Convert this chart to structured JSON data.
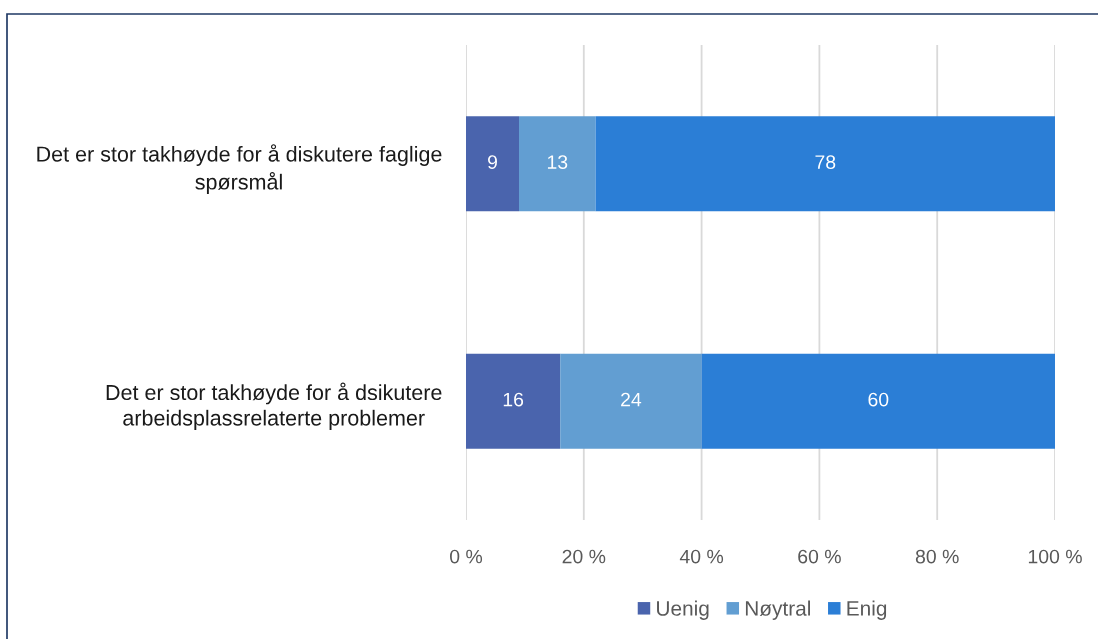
{
  "chart_data": {
    "type": "bar",
    "orientation": "horizontal",
    "stacked": true,
    "categories": [
      "Det er stor takhøyde for å diskutere faglige\nspørsmål",
      "Det er stor takhøyde for å dsikutere\narbeidsplassrelaterte problemer"
    ],
    "series": [
      {
        "name": "Uenig",
        "color": "#4a64ad",
        "values": [
          9,
          16
        ]
      },
      {
        "name": "Nøytral",
        "color": "#629ed2",
        "values": [
          13,
          24
        ]
      },
      {
        "name": "Enig",
        "color": "#2b7ed6",
        "values": [
          78,
          60
        ]
      }
    ],
    "xlim": [
      0,
      100
    ],
    "xticks": [
      {
        "value": 0,
        "label": "0 %"
      },
      {
        "value": 20,
        "label": "20 %"
      },
      {
        "value": 40,
        "label": "40 %"
      },
      {
        "value": 60,
        "label": "60 %"
      },
      {
        "value": 80,
        "label": "80 %"
      },
      {
        "value": 100,
        "label": "100 %"
      }
    ],
    "grid": "x",
    "legend": "bottom",
    "data_labels": true
  }
}
